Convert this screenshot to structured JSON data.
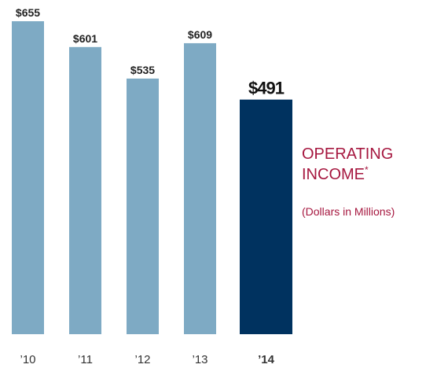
{
  "chart_data": {
    "type": "bar",
    "title": "OPERATING INCOME*",
    "subtitle": "(Dollars in Millions)",
    "categories": [
      "’10",
      "’11",
      "’12",
      "’13",
      "’14"
    ],
    "values": [
      655,
      601,
      535,
      609,
      491
    ],
    "value_labels": [
      "$655",
      "$601",
      "$535",
      "$609",
      "$491"
    ],
    "colors": [
      "#7eaac4",
      "#7eaac4",
      "#7eaac4",
      "#7eaac4",
      "#00325f"
    ],
    "title_color": "#a6173f",
    "subtitle_color": "#a6173f"
  }
}
